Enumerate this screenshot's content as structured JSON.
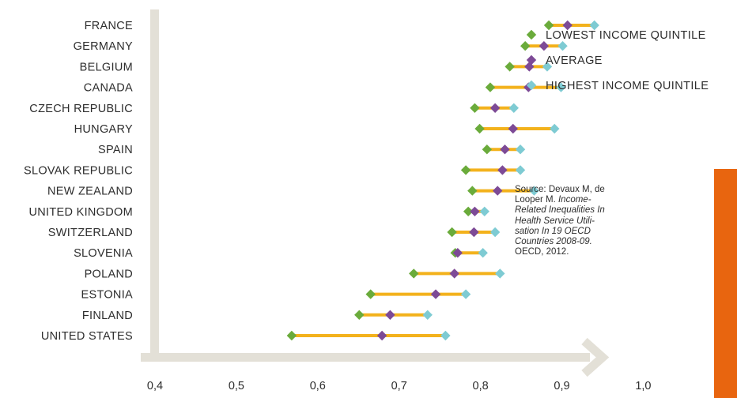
{
  "chart_data": {
    "type": "dot-range",
    "categories": [
      "FRANCE",
      "GERMANY",
      "BELGIUM",
      "CANADA",
      "CZECH REPUBLIC",
      "HUNGARY",
      "SPAIN",
      "SLOVAK REPUBLIC",
      "NEW ZEALAND",
      "UNITED KINGDOM",
      "SWITZERLAND",
      "SLOVENIA",
      "POLAND",
      "ESTONIA",
      "FINLAND",
      "UNITED STATES"
    ],
    "series": [
      {
        "name": "LOWEST INCOME QUINTILE",
        "color": "#6aab3b",
        "values": [
          0.884,
          0.855,
          0.836,
          0.812,
          0.793,
          0.799,
          0.808,
          0.782,
          0.79,
          0.785,
          0.765,
          0.769,
          0.718,
          0.665,
          0.651,
          0.568
        ]
      },
      {
        "name": "AVERAGE",
        "color": "#7d4a96",
        "values": [
          0.907,
          0.878,
          0.86,
          0.859,
          0.818,
          0.84,
          0.83,
          0.827,
          0.821,
          0.793,
          0.792,
          0.772,
          0.768,
          0.745,
          0.689,
          0.679
        ]
      },
      {
        "name": "HIGHEST INCOME QUINTILE",
        "color": "#7ecbd3",
        "values": [
          0.94,
          0.901,
          0.882,
          0.899,
          0.841,
          0.891,
          0.849,
          0.849,
          0.866,
          0.805,
          0.818,
          0.803,
          0.824,
          0.782,
          0.735,
          0.757
        ]
      }
    ],
    "range_color": "#f3b21c",
    "x_ticks": [
      "0,4",
      "0,5",
      "0,6",
      "0,7",
      "0,8",
      "0,9",
      "1,0"
    ],
    "x_tick_values": [
      0.4,
      0.5,
      0.6,
      0.7,
      0.8,
      0.9,
      1.0
    ],
    "xlim": [
      0.4,
      1.0
    ],
    "axis_color": "#e3e0d7",
    "legend_position": "top-right"
  },
  "source": {
    "prefix": "Source: Devaux M, de Looper M.",
    "reference": "Income-Related Inequalities In Health Service Utili-sation In 19 OECD Countries 2008-09.",
    "suffix": "OECD, 2012."
  },
  "accent_color": "#e8650f"
}
